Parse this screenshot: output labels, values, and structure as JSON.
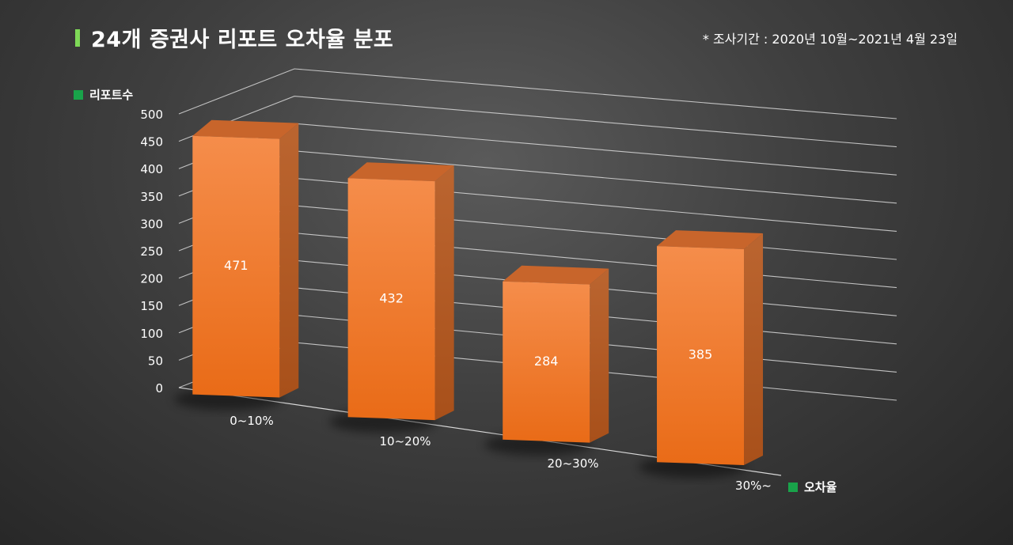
{
  "header": {
    "title": "24개 증권사 리포트 오차율 분포",
    "period_note": "* 조사기간 : 2020년 10월~2021년 4월 23일"
  },
  "colors": {
    "bar_front": "#ef7a2a",
    "bar_side": "#b65a1f",
    "bar_top": "#c8652b",
    "legend_marker": "#19a34a",
    "title_accent": "#7ed957"
  },
  "chart_data": {
    "type": "bar",
    "title": "24개 증권사 리포트 오차율 분포",
    "ylabel": "리포트수",
    "xlabel": "오차율",
    "categories": [
      "0~10%",
      "10~20%",
      "20~30%",
      "30%~"
    ],
    "values": [
      471,
      432,
      284,
      385
    ],
    "ylim": [
      0,
      500
    ],
    "yticks": [
      0,
      50,
      100,
      150,
      200,
      250,
      300,
      350,
      400,
      450,
      500
    ],
    "grid": true,
    "three_d": true,
    "data_labels": true
  }
}
